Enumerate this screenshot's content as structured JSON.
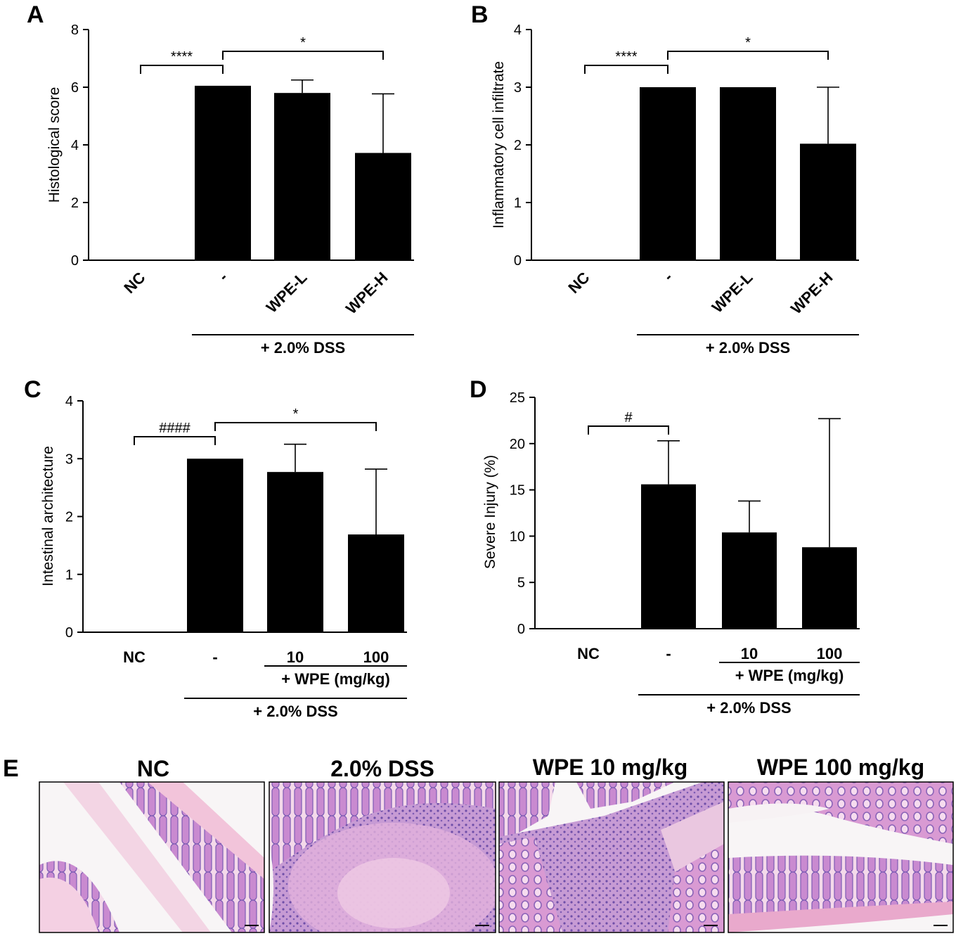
{
  "panels": [
    {
      "label": "A",
      "chart_data": {
        "type": "bar",
        "categories": [
          "NC",
          "-",
          "WPE-L",
          "WPE-H"
        ],
        "values": [
          0,
          6.05,
          5.8,
          3.72
        ],
        "errors": [
          0,
          0,
          0.45,
          2.05
        ],
        "ylabel": "Histological score",
        "ylim": [
          0,
          8
        ],
        "yticks": [
          "0",
          "2",
          "4",
          "6",
          "8"
        ],
        "rotated_labels": true,
        "significance": [
          {
            "from": 0,
            "to": 1,
            "label": "****"
          },
          {
            "from": 1,
            "to": 3,
            "label": "*"
          }
        ],
        "groups": [
          {
            "label": "+ 2.0% DSS",
            "from": 1,
            "to": 3
          }
        ]
      }
    },
    {
      "label": "B",
      "chart_data": {
        "type": "bar",
        "categories": [
          "NC",
          "-",
          "WPE-L",
          "WPE-H"
        ],
        "values": [
          0,
          3.0,
          3.0,
          2.02
        ],
        "errors": [
          0,
          0,
          0,
          0.98
        ],
        "ylabel": "Inflammatory cell infiltrate",
        "ylim": [
          0,
          4
        ],
        "yticks": [
          "0",
          "1",
          "2",
          "3",
          "4"
        ],
        "rotated_labels": true,
        "significance": [
          {
            "from": 0,
            "to": 1,
            "label": "****"
          },
          {
            "from": 1,
            "to": 3,
            "label": "*"
          }
        ],
        "groups": [
          {
            "label": "+ 2.0% DSS",
            "from": 1,
            "to": 3
          }
        ]
      }
    },
    {
      "label": "C",
      "chart_data": {
        "type": "bar",
        "categories": [
          "NC",
          "-",
          "10",
          "100"
        ],
        "values": [
          0,
          3.0,
          2.77,
          1.69
        ],
        "errors": [
          0,
          0,
          0.48,
          1.13
        ],
        "ylabel": "Intestinal architecture",
        "ylim": [
          0,
          4
        ],
        "yticks": [
          "0",
          "1",
          "2",
          "3",
          "4"
        ],
        "rotated_labels": false,
        "significance": [
          {
            "from": 0,
            "to": 1,
            "label": "####"
          },
          {
            "from": 1,
            "to": 3,
            "label": "*"
          }
        ],
        "groups": [
          {
            "label": "+ WPE (mg/kg)",
            "from": 2,
            "to": 3
          },
          {
            "label": "+ 2.0% DSS",
            "from": 1,
            "to": 3
          }
        ]
      }
    },
    {
      "label": "D",
      "chart_data": {
        "type": "bar",
        "categories": [
          "NC",
          "-",
          "10",
          "100"
        ],
        "values": [
          0,
          15.6,
          10.4,
          8.8
        ],
        "errors": [
          0,
          4.7,
          3.4,
          13.9
        ],
        "ylabel": "Severe Injury (%)",
        "ylim": [
          0,
          25
        ],
        "yticks": [
          "0",
          "5",
          "10",
          "15",
          "20",
          "25"
        ],
        "rotated_labels": false,
        "significance": [
          {
            "from": 0,
            "to": 1,
            "label": "#"
          }
        ],
        "groups": [
          {
            "label": "+ WPE (mg/kg)",
            "from": 2,
            "to": 3
          },
          {
            "label": "+ 2.0% DSS",
            "from": 1,
            "to": 3
          }
        ]
      }
    }
  ],
  "micrographs": {
    "label": "E",
    "titles": [
      "NC",
      "2.0% DSS",
      "WPE 10 mg/kg",
      "WPE 100 mg/kg"
    ],
    "colors": {
      "tissue": "#cc88c8",
      "stroma": "#f3c6dd",
      "nuclei": "#7b5fb0",
      "background": "#f8f5f6"
    }
  }
}
